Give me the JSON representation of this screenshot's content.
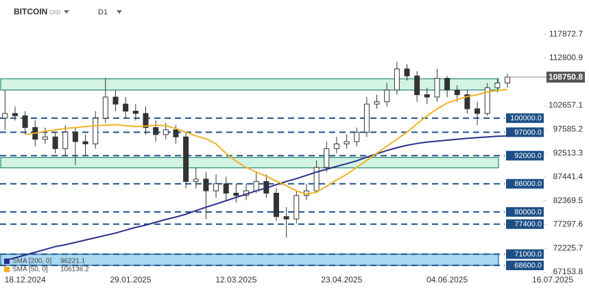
{
  "header": {
    "symbol": "BITCOIN",
    "kind": "CFD",
    "timeframe": "D1"
  },
  "chart_data": {
    "type": "candlestick",
    "x": [
      "10.12.2024",
      "14.12.2024",
      "18.12.2024",
      "22.12.2024",
      "26.12.2024",
      "30.12.2024",
      "03.01.2025",
      "07.01.2025",
      "11.01.2025",
      "15.01.2025",
      "19.01.2025",
      "23.01.2025",
      "27.01.2025",
      "31.01.2025",
      "04.02.2025",
      "08.02.2025",
      "12.02.2025",
      "16.02.2025",
      "20.02.2025",
      "24.02.2025",
      "28.02.2025",
      "04.03.2025",
      "08.03.2025",
      "12.03.2025",
      "16.03.2025",
      "20.03.2025",
      "24.03.2025",
      "28.03.2025",
      "01.04.2025",
      "05.04.2025",
      "09.04.2025",
      "13.04.2025",
      "17.04.2025",
      "21.04.2025",
      "25.04.2025",
      "29.04.2025",
      "03.05.2025",
      "07.05.2025",
      "11.05.2025",
      "15.05.2025",
      "19.05.2025",
      "23.05.2025",
      "27.05.2025",
      "31.05.2025",
      "04.06.2025",
      "08.06.2025",
      "12.06.2025",
      "16.06.2025",
      "20.06.2025",
      "24.06.2025",
      "28.06.2025"
    ],
    "open": [
      100000,
      101000,
      100500,
      98000,
      95500,
      96000,
      93500,
      97000,
      95000,
      94500,
      100000,
      104500,
      103000,
      101500,
      101000,
      98000,
      96500,
      97500,
      96000,
      86500,
      87000,
      84500,
      86000,
      84000,
      83500,
      84500,
      86500,
      84000,
      79000,
      78500,
      83500,
      84500,
      89500,
      93500,
      94500,
      95000,
      97000,
      103000,
      103500,
      106000,
      110500,
      109000,
      105000,
      104500,
      108500,
      106000,
      105000,
      102000,
      101000,
      106500,
      107500
    ],
    "high": [
      106000,
      102500,
      101500,
      99500,
      98000,
      97000,
      98500,
      98000,
      96500,
      101500,
      108600,
      106000,
      104500,
      103000,
      102500,
      99500,
      99000,
      98500,
      97000,
      89500,
      88500,
      88000,
      87500,
      86000,
      86000,
      88500,
      88000,
      85000,
      81000,
      84500,
      86000,
      91000,
      95000,
      96000,
      96500,
      98000,
      104500,
      105000,
      107500,
      112000,
      111500,
      110000,
      106500,
      110500,
      109000,
      107000,
      106000,
      103500,
      107500,
      108500,
      109500
    ],
    "low": [
      97500,
      99500,
      96500,
      94000,
      94500,
      92500,
      92000,
      90000,
      92000,
      93500,
      99000,
      101500,
      100000,
      99500,
      96500,
      95000,
      95500,
      94500,
      85000,
      85000,
      78500,
      83000,
      82500,
      82000,
      82500,
      84000,
      83000,
      78000,
      74500,
      77500,
      82500,
      84000,
      88500,
      92500,
      93500,
      94000,
      96000,
      102000,
      102500,
      105000,
      108000,
      103500,
      103000,
      103500,
      104500,
      103500,
      101000,
      98500,
      100500,
      105500,
      106500
    ],
    "close": [
      101000,
      100500,
      98000,
      95500,
      96000,
      93500,
      97000,
      95000,
      94500,
      100000,
      104500,
      103000,
      101500,
      101000,
      98000,
      96500,
      97500,
      96000,
      86500,
      87000,
      84500,
      86000,
      84000,
      83500,
      84500,
      86500,
      84000,
      79000,
      78500,
      83500,
      84500,
      89500,
      93500,
      94500,
      95000,
      97000,
      103000,
      103500,
      106000,
      110500,
      109000,
      105000,
      104500,
      108500,
      106000,
      105000,
      102000,
      101000,
      106500,
      107500,
      108750.8
    ],
    "current_price": {
      "value": 108750.8,
      "label": "108750.8"
    },
    "series": [
      {
        "name": "SMA [200, 0]",
        "color": "#2b2f8a",
        "values": [
          69700,
          70200,
          70800,
          71400,
          72000,
          72600,
          73000,
          73500,
          74000,
          74500,
          75000,
          75500,
          76100,
          76700,
          77200,
          77800,
          78400,
          78900,
          79500,
          80300,
          81000,
          81700,
          82400,
          83100,
          83800,
          84500,
          85100,
          85800,
          86500,
          87100,
          87800,
          88500,
          89100,
          89700,
          90300,
          90900,
          91700,
          92400,
          93100,
          93700,
          94200,
          94600,
          94900,
          95100,
          95300,
          95500,
          95700,
          95850,
          96000,
          96150,
          96221.1
        ]
      },
      {
        "name": "SMA [50, 0]",
        "color": "#f0b323",
        "values": [
          null,
          null,
          96500,
          96800,
          97200,
          97500,
          97800,
          98000,
          98200,
          98400,
          98500,
          98600,
          98400,
          98200,
          98300,
          98500,
          98400,
          97800,
          97000,
          96200,
          95600,
          94500,
          92500,
          90800,
          89500,
          88500,
          87600,
          86600,
          85600,
          84500,
          83800,
          84200,
          85500,
          86800,
          88000,
          89500,
          91000,
          92500,
          94000,
          95500,
          97000,
          98800,
          100500,
          102000,
          103200,
          104000,
          104600,
          105000,
          105600,
          105900,
          106136.2
        ]
      }
    ],
    "levels": [
      {
        "value": 100000,
        "label": "100000.0"
      },
      {
        "value": 97000,
        "label": "97000.0"
      },
      {
        "value": 92000,
        "label": "92000.0"
      },
      {
        "value": 86000,
        "label": "86000.0"
      },
      {
        "value": 80000,
        "label": "80000.0"
      },
      {
        "value": 77400,
        "label": "77400.0"
      },
      {
        "value": 71000,
        "label": "71000.0"
      },
      {
        "value": 68600,
        "label": "68600.0"
      }
    ],
    "zones": [
      {
        "from": 106000,
        "to": 108400,
        "color": "#d3f3e4",
        "stroke": "#1f8a6c"
      },
      {
        "from": 89400,
        "to": 91600,
        "color": "#d3f3e4",
        "stroke": "#1f8a6c"
      },
      {
        "from": 68600,
        "to": 71000,
        "color": "#a9d9f1",
        "stroke": "#1565a0"
      }
    ],
    "xlim": [
      "08.12.2024",
      "13.07.2025"
    ],
    "xticks": [
      "18.12.2024",
      "29.01.2025",
      "12.03.2025",
      "23.04.2025",
      "04.06.2025",
      "16.07.2025"
    ],
    "ylim": [
      66860,
      125200
    ],
    "yticks": [
      67153.8,
      72225.7,
      77297.6,
      82369.5,
      87441.4,
      92513.3,
      97585.2,
      102657.1,
      112800.9,
      117872.7
    ]
  }
}
